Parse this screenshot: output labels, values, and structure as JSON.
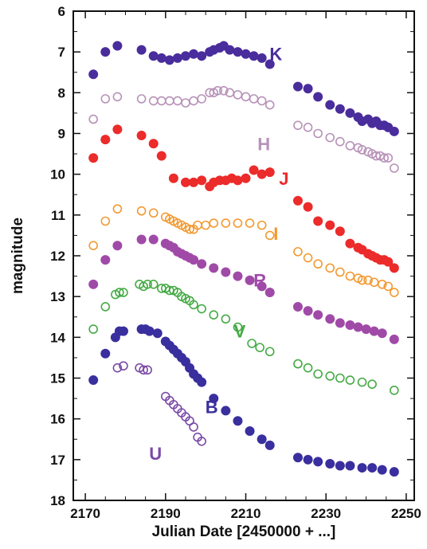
{
  "chart_data": {
    "type": "scatter",
    "title": "",
    "xlabel": "Julian Date [2450000 + ...]",
    "ylabel": "magnitude",
    "xlim": [
      2167,
      2252
    ],
    "ylim": [
      18,
      6
    ],
    "y_inverted": true,
    "x_ticks": [
      2170,
      2190,
      2210,
      2230,
      2250
    ],
    "x_tick_labels": [
      "2170",
      "2190",
      "2210",
      "2230",
      "2250"
    ],
    "y_ticks": [
      6,
      7,
      8,
      9,
      10,
      11,
      12,
      13,
      14,
      15,
      16,
      17,
      18
    ],
    "y_tick_labels": [
      "6",
      "7",
      "8",
      "9",
      "10",
      "11",
      "12",
      "13",
      "14",
      "15",
      "16",
      "17",
      "18"
    ],
    "grid": false,
    "legend": "none",
    "series": [
      {
        "name": "K",
        "color": "#4a2d9c",
        "marker": "filled",
        "label_at": [
          2217.5,
          7.05
        ],
        "x": [
          2172,
          2175,
          2178,
          2184,
          2187,
          2189,
          2191,
          2193,
          2195,
          2197,
          2199,
          2201,
          2202,
          2203.5,
          2204.5,
          2206,
          2208,
          2210,
          2212,
          2214,
          2216,
          2223,
          2225.5,
          2228,
          2231,
          2233.5,
          2236,
          2238,
          2239,
          2240.5,
          2241.5,
          2242.5,
          2243.5,
          2244.5,
          2245.5,
          2247
        ],
        "y": [
          7.55,
          7.0,
          6.85,
          6.95,
          7.1,
          7.15,
          7.2,
          7.15,
          7.1,
          7.05,
          7.1,
          7.0,
          6.95,
          6.9,
          6.85,
          6.95,
          7.0,
          7.05,
          7.1,
          7.15,
          7.3,
          7.85,
          7.9,
          8.1,
          8.3,
          8.4,
          8.5,
          8.6,
          8.7,
          8.65,
          8.75,
          8.7,
          8.8,
          8.8,
          8.85,
          8.95
        ]
      },
      {
        "name": "H",
        "color": "#b792b8",
        "marker": "open",
        "label_at": [
          2214.5,
          9.25
        ],
        "x": [
          2172,
          2175,
          2178,
          2184,
          2187,
          2189,
          2191,
          2193,
          2195,
          2197,
          2199,
          2201,
          2202,
          2203,
          2204.5,
          2206,
          2208,
          2210,
          2212,
          2214,
          2216,
          2223,
          2225.5,
          2228,
          2231,
          2233.5,
          2236,
          2238,
          2239,
          2240.5,
          2241.5,
          2242.5,
          2243.5,
          2244.5,
          2245.5,
          2247
        ],
        "y": [
          8.65,
          8.15,
          8.1,
          8.15,
          8.2,
          8.2,
          8.2,
          8.2,
          8.25,
          8.2,
          8.15,
          8.0,
          8.0,
          7.95,
          7.95,
          8.0,
          8.05,
          8.1,
          8.15,
          8.2,
          8.3,
          8.8,
          8.85,
          9.0,
          9.1,
          9.2,
          9.3,
          9.35,
          9.4,
          9.45,
          9.5,
          9.55,
          9.55,
          9.6,
          9.6,
          9.85
        ]
      },
      {
        "name": "J",
        "color": "#ec2b2b",
        "marker": "filled",
        "label_at": [
          2219.5,
          10.1
        ],
        "x": [
          2172,
          2175,
          2178,
          2184,
          2187,
          2189,
          2192,
          2195,
          2197,
          2199,
          2201,
          2202,
          2203.5,
          2205,
          2206.5,
          2208,
          2210,
          2212,
          2214,
          2216,
          2223,
          2225.5,
          2228,
          2231,
          2233.5,
          2236,
          2238,
          2239,
          2240.5,
          2241.5,
          2242.5,
          2243.5,
          2244.5,
          2245.5,
          2247
        ],
        "y": [
          9.6,
          9.15,
          8.9,
          9.05,
          9.25,
          9.55,
          10.1,
          10.2,
          10.2,
          10.15,
          10.3,
          10.2,
          10.15,
          10.15,
          10.1,
          10.15,
          10.1,
          9.9,
          10.0,
          9.95,
          10.65,
          10.8,
          11.15,
          11.25,
          11.4,
          11.7,
          11.8,
          11.85,
          11.95,
          12.0,
          12.05,
          12.1,
          12.1,
          12.15,
          12.3
        ]
      },
      {
        "name": "I",
        "color": "#f29a32",
        "marker": "open",
        "label_at": [
          2217.5,
          11.45
        ],
        "x": [
          2172,
          2175,
          2178,
          2184,
          2187,
          2190,
          2191,
          2192,
          2193,
          2194,
          2195,
          2196,
          2197,
          2198,
          2200,
          2202,
          2205,
          2208,
          2211,
          2214,
          2216,
          2223,
          2225.5,
          2228,
          2231,
          2233.5,
          2236,
          2238,
          2239,
          2240.5,
          2242,
          2244,
          2245.5,
          2247
        ],
        "y": [
          11.75,
          11.15,
          10.85,
          10.9,
          10.95,
          11.05,
          11.1,
          11.15,
          11.2,
          11.25,
          11.3,
          11.35,
          11.35,
          11.25,
          11.25,
          11.2,
          11.2,
          11.2,
          11.2,
          11.25,
          11.5,
          11.9,
          12.05,
          12.2,
          12.3,
          12.4,
          12.5,
          12.55,
          12.6,
          12.6,
          12.65,
          12.7,
          12.75,
          12.9
        ]
      },
      {
        "name": "R",
        "color": "#a04aa8",
        "marker": "filled",
        "label_at": [
          2213.5,
          12.6
        ],
        "x": [
          2172,
          2175,
          2178,
          2184,
          2187,
          2190,
          2191,
          2192,
          2193,
          2194,
          2195,
          2196,
          2197,
          2199,
          2202,
          2205,
          2208,
          2211,
          2214,
          2216,
          2223,
          2225.5,
          2228,
          2231,
          2233.5,
          2236,
          2238,
          2240,
          2242,
          2244,
          2247
        ],
        "y": [
          12.7,
          12.1,
          11.75,
          11.6,
          11.6,
          11.7,
          11.75,
          11.8,
          11.9,
          11.95,
          12.0,
          12.05,
          12.1,
          12.2,
          12.3,
          12.4,
          12.5,
          12.6,
          12.75,
          12.9,
          13.25,
          13.35,
          13.45,
          13.55,
          13.65,
          13.7,
          13.75,
          13.8,
          13.85,
          13.9,
          14.05
        ]
      },
      {
        "name": "V",
        "color": "#45aa45",
        "marker": "open",
        "label_at": [
          2208.5,
          13.85
        ],
        "x": [
          2172,
          2175,
          2177.5,
          2178.5,
          2179.5,
          2183.5,
          2184.5,
          2185.5,
          2187,
          2189,
          2190,
          2191,
          2192,
          2193,
          2194,
          2195,
          2196,
          2197,
          2199,
          2202,
          2205,
          2208,
          2211.5,
          2213.5,
          2216,
          2223,
          2225.5,
          2228,
          2231,
          2233.5,
          2236,
          2239,
          2241.5,
          2247
        ],
        "y": [
          13.8,
          13.25,
          12.95,
          12.9,
          12.9,
          12.7,
          12.75,
          12.7,
          12.7,
          12.8,
          12.8,
          12.85,
          12.85,
          12.9,
          13.0,
          13.05,
          13.1,
          13.2,
          13.3,
          13.45,
          13.55,
          13.75,
          14.15,
          14.25,
          14.35,
          14.65,
          14.75,
          14.9,
          14.95,
          15.0,
          15.05,
          15.1,
          15.15,
          15.3
        ]
      },
      {
        "name": "B",
        "color": "#3a2f9e",
        "marker": "filled",
        "label_at": [
          2201.5,
          15.7
        ],
        "x": [
          2172,
          2175,
          2177.5,
          2178.5,
          2179.5,
          2184,
          2185,
          2186,
          2188,
          2190,
          2191,
          2192,
          2193,
          2194,
          2195,
          2196,
          2197,
          2198,
          2199,
          2202,
          2205,
          2208,
          2211,
          2214,
          2216,
          2223,
          2225.5,
          2228,
          2231,
          2233.5,
          2236,
          2239,
          2241.5,
          2244,
          2247
        ],
        "y": [
          15.05,
          14.4,
          14.0,
          13.85,
          13.85,
          13.8,
          13.8,
          13.85,
          13.9,
          14.1,
          14.2,
          14.3,
          14.4,
          14.5,
          14.6,
          14.75,
          14.9,
          15.0,
          15.1,
          15.5,
          15.8,
          16.05,
          16.3,
          16.5,
          16.65,
          16.95,
          17.0,
          17.05,
          17.1,
          17.15,
          17.15,
          17.2,
          17.2,
          17.25,
          17.3
        ]
      },
      {
        "name": "U",
        "color": "#7b4aa6",
        "marker": "open",
        "label_at": [
          2187.5,
          16.85
        ],
        "x": [
          2178,
          2179.5,
          2183.5,
          2184.5,
          2185.5,
          2190,
          2191,
          2192,
          2193,
          2194,
          2195,
          2196,
          2197,
          2198,
          2199
        ],
        "y": [
          14.75,
          14.7,
          14.75,
          14.8,
          14.8,
          15.45,
          15.55,
          15.65,
          15.75,
          15.85,
          15.95,
          16.05,
          16.2,
          16.45,
          16.55
        ]
      }
    ]
  }
}
